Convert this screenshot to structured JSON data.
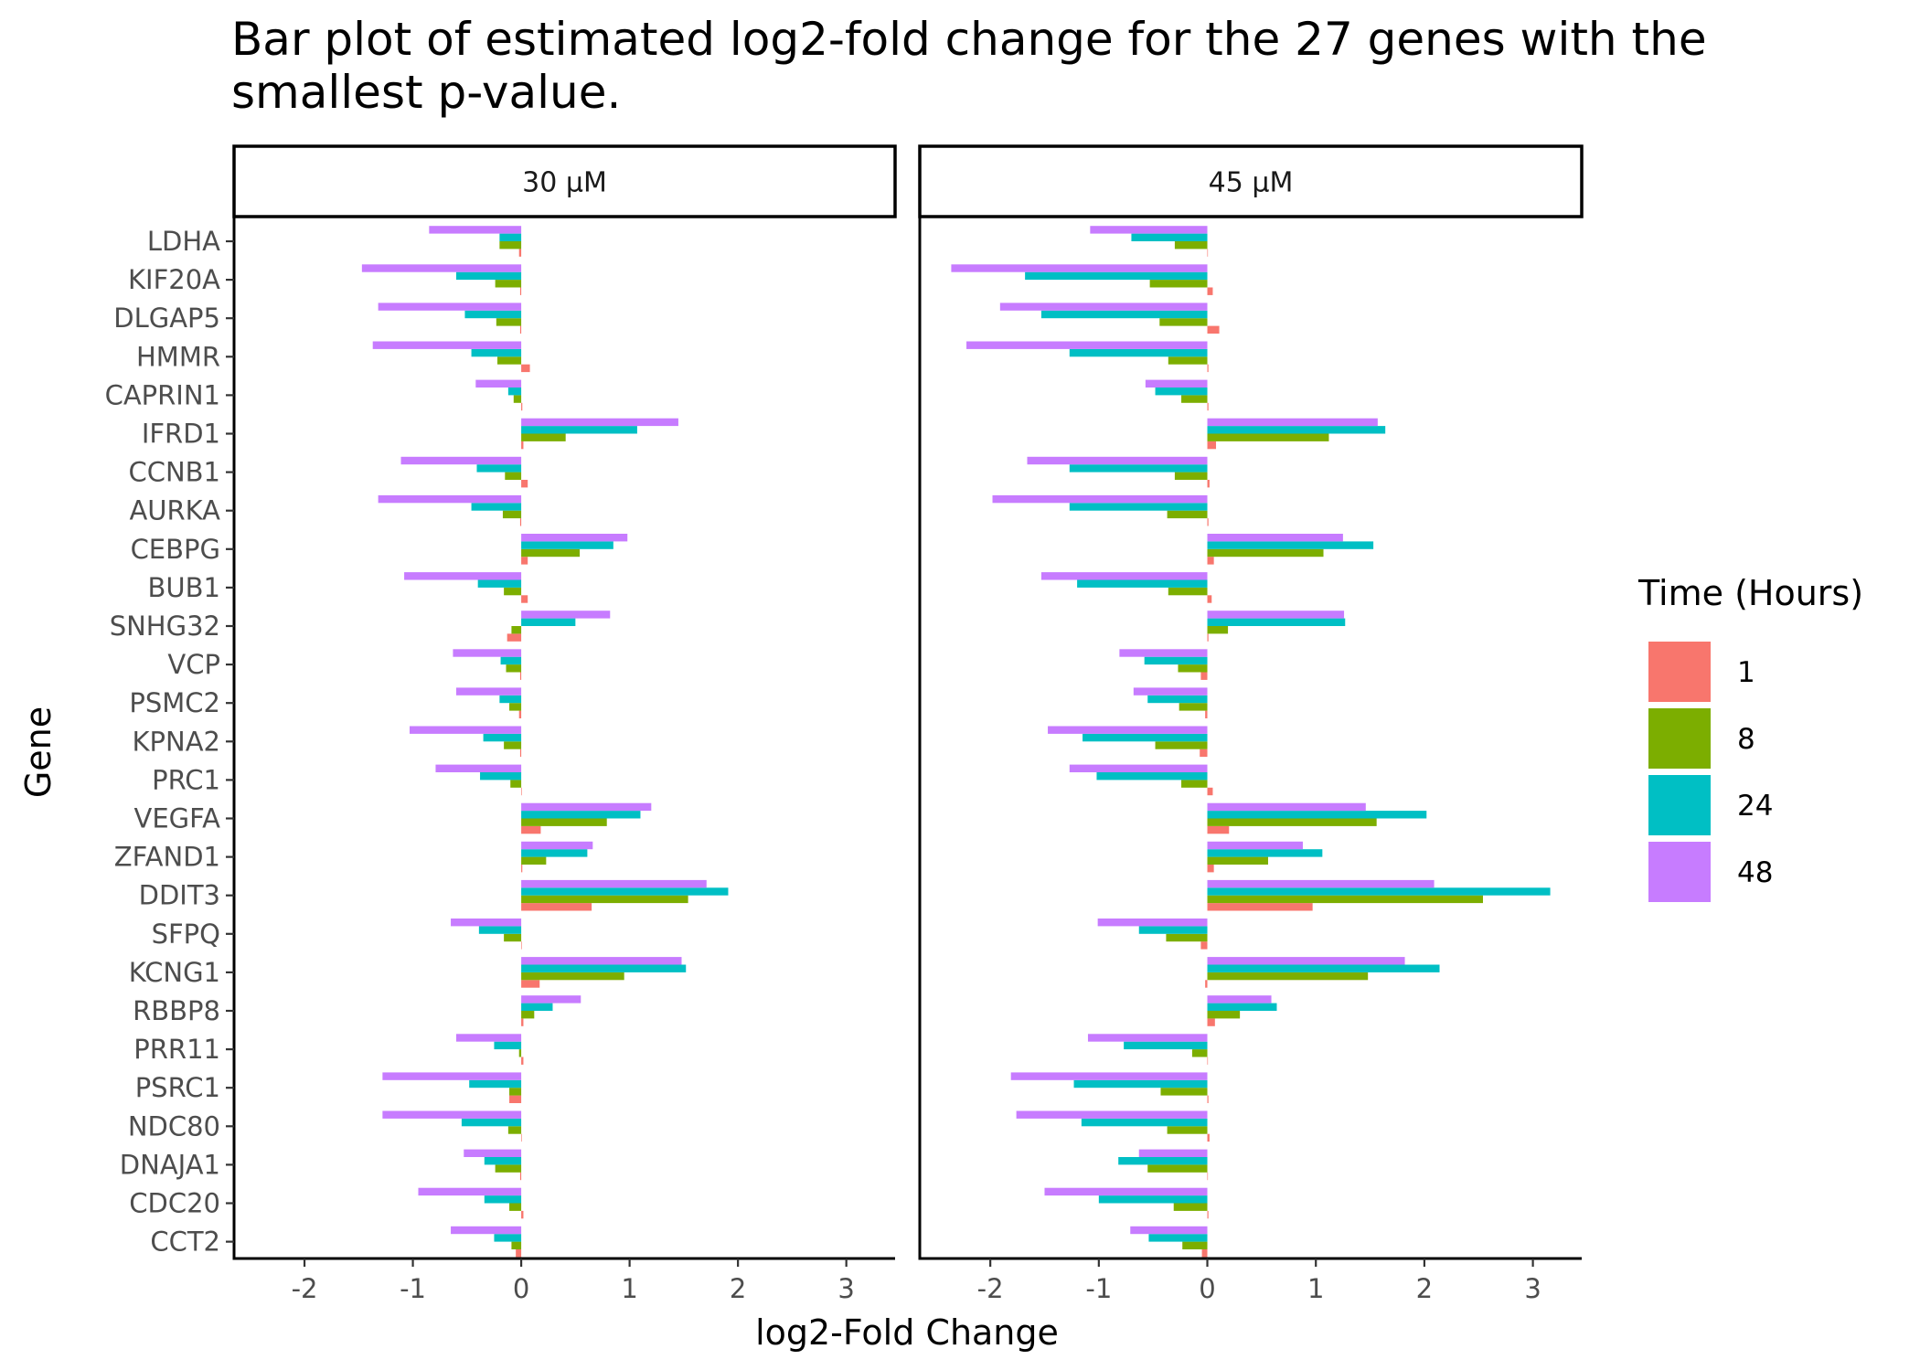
{
  "chart_data": {
    "type": "bar",
    "orientation": "horizontal",
    "title_lines": [
      "Bar plot of estimated log2-fold change for the 27 genes with the",
      "smallest p-value."
    ],
    "xlabel": "log2-Fold Change",
    "ylabel": "Gene",
    "xlim": [
      -2.65,
      3.45
    ],
    "xticks": [
      -2,
      -1,
      0,
      1,
      2,
      3
    ],
    "grid": false,
    "legend": {
      "title": "Time (Hours)",
      "position": "right",
      "entries": [
        {
          "label": "1",
          "color": "#F8766D"
        },
        {
          "label": "8",
          "color": "#7CAE00"
        },
        {
          "label": "24",
          "color": "#00BFC4"
        },
        {
          "label": "48",
          "color": "#C77CFF"
        }
      ]
    },
    "series_order": [
      "1",
      "8",
      "24",
      "48"
    ],
    "categories": [
      "LDHA",
      "KIF20A",
      "DLGAP5",
      "HMMR",
      "CAPRIN1",
      "IFRD1",
      "CCNB1",
      "AURKA",
      "CEBPG",
      "BUB1",
      "SNHG32",
      "VCP",
      "PSMC2",
      "KPNA2",
      "PRC1",
      "VEGFA",
      "ZFAND1",
      "DDIT3",
      "SFPQ",
      "KCNG1",
      "RBBP8",
      "PRR11",
      "PSRC1",
      "NDC80",
      "DNAJA1",
      "CDC20",
      "CCT2"
    ],
    "panels": [
      {
        "label": "30 µM",
        "series": [
          {
            "name": "1",
            "values": [
              -0.02,
              -0.01,
              -0.01,
              0.08,
              0.01,
              0.02,
              0.06,
              -0.01,
              0.06,
              0.06,
              -0.13,
              -0.01,
              -0.02,
              -0.01,
              0.0,
              0.18,
              0.01,
              0.65,
              0.0,
              0.17,
              0.02,
              0.02,
              -0.11,
              0.0,
              -0.01,
              0.02,
              -0.05
            ]
          },
          {
            "name": "8",
            "values": [
              -0.2,
              -0.24,
              -0.23,
              -0.22,
              -0.07,
              0.41,
              -0.15,
              -0.17,
              0.54,
              -0.16,
              -0.09,
              -0.14,
              -0.11,
              -0.16,
              -0.1,
              0.79,
              0.23,
              1.54,
              -0.16,
              0.95,
              0.12,
              -0.02,
              -0.11,
              -0.12,
              -0.24,
              -0.11,
              -0.09
            ]
          },
          {
            "name": "24",
            "values": [
              -0.2,
              -0.6,
              -0.52,
              -0.46,
              -0.12,
              1.07,
              -0.41,
              -0.46,
              0.85,
              -0.4,
              0.5,
              -0.19,
              -0.2,
              -0.35,
              -0.38,
              1.1,
              0.61,
              1.91,
              -0.39,
              1.52,
              0.29,
              -0.25,
              -0.48,
              -0.55,
              -0.34,
              -0.34,
              -0.25
            ]
          },
          {
            "name": "48",
            "values": [
              -0.85,
              -1.47,
              -1.32,
              -1.37,
              -0.42,
              1.45,
              -1.11,
              -1.32,
              0.98,
              -1.08,
              0.82,
              -0.63,
              -0.6,
              -1.03,
              -0.79,
              1.2,
              0.66,
              1.71,
              -0.65,
              1.48,
              0.55,
              -0.6,
              -1.28,
              -1.28,
              -0.53,
              -0.95,
              -0.65
            ]
          }
        ]
      },
      {
        "label": "45 µM",
        "series": [
          {
            "name": "1",
            "values": [
              0.0,
              0.05,
              0.11,
              0.01,
              0.01,
              0.08,
              0.02,
              0.01,
              0.06,
              0.04,
              0.01,
              -0.06,
              -0.02,
              -0.07,
              0.05,
              0.2,
              0.06,
              0.97,
              -0.06,
              -0.02,
              0.07,
              0.0,
              0.01,
              0.02,
              0.0,
              0.01,
              -0.05
            ]
          },
          {
            "name": "8",
            "values": [
              -0.3,
              -0.53,
              -0.44,
              -0.36,
              -0.24,
              1.12,
              -0.3,
              -0.37,
              1.07,
              -0.36,
              0.19,
              -0.27,
              -0.26,
              -0.48,
              -0.24,
              1.56,
              0.56,
              2.54,
              -0.38,
              1.48,
              0.3,
              -0.14,
              -0.43,
              -0.37,
              -0.55,
              -0.31,
              -0.23
            ]
          },
          {
            "name": "24",
            "values": [
              -0.7,
              -1.68,
              -1.53,
              -1.27,
              -0.48,
              1.64,
              -1.27,
              -1.27,
              1.53,
              -1.2,
              1.27,
              -0.58,
              -0.55,
              -1.15,
              -1.02,
              2.02,
              1.06,
              3.16,
              -0.63,
              2.14,
              0.64,
              -0.77,
              -1.23,
              -1.16,
              -0.82,
              -1.0,
              -0.54
            ]
          },
          {
            "name": "48",
            "values": [
              -1.08,
              -2.36,
              -1.91,
              -2.22,
              -0.57,
              1.57,
              -1.66,
              -1.98,
              1.25,
              -1.53,
              1.26,
              -0.81,
              -0.68,
              -1.47,
              -1.27,
              1.46,
              0.88,
              2.09,
              -1.01,
              1.82,
              0.59,
              -1.1,
              -1.81,
              -1.76,
              -0.63,
              -1.5,
              -0.71
            ]
          }
        ]
      }
    ]
  }
}
